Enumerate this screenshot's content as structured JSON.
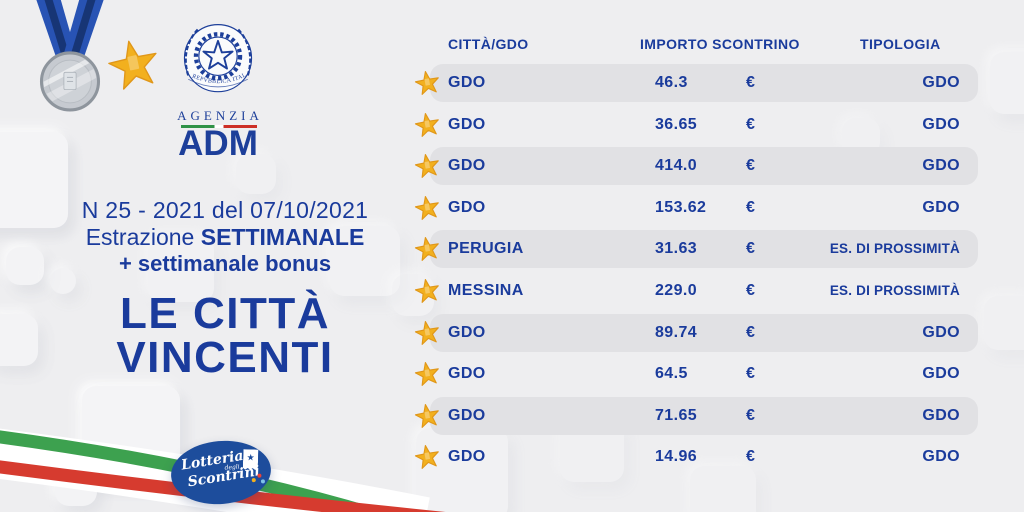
{
  "colors": {
    "accent_blue": "#1a3b9c",
    "row_highlight": "#e1e1e4",
    "star_gold": "#f2b01e",
    "star_gold_dark": "#e0971a",
    "tricolor_green": "#2f9247",
    "tricolor_red": "#cd2f26",
    "logo_ellipse_blue": "#1d4d9c",
    "medal_silver": "#c6cad0",
    "ribbon_blue": "#2853b4"
  },
  "icons": {
    "medal": "medal-icon",
    "star": "star-icon",
    "emblem": "italy-emblem-icon",
    "receipt": "receipt-icon"
  },
  "adm_logo": {
    "banner_text": "REPVBBLICA ITALIANA",
    "agenzia": "AGENZIA",
    "adm": "ADM"
  },
  "left_panel": {
    "line1": "N 25 - 2021 del 07/10/2021",
    "line2_regular": "Estrazione ",
    "line2_bold": "SETTIMANALE",
    "line3": "+ settimanale bonus",
    "title_line1": "LE CITTÀ",
    "title_line2": "VINCENTI"
  },
  "footer_logo": {
    "word1": "Lotteria",
    "word2": "degli",
    "word3": "Scontrini",
    "receipt_star": "★"
  },
  "table": {
    "columns": [
      "CITTÀ/GDO",
      "IMPORTO SCONTRINO",
      "TIPOLOGIA"
    ],
    "currency": "€",
    "rows": [
      {
        "citta": "GDO",
        "importo": "46.3",
        "tipologia": "GDO",
        "highlight": true
      },
      {
        "citta": "GDO",
        "importo": "36.65",
        "tipologia": "GDO",
        "highlight": false
      },
      {
        "citta": "GDO",
        "importo": "414.0",
        "tipologia": "GDO",
        "highlight": true
      },
      {
        "citta": "GDO",
        "importo": "153.62",
        "tipologia": "GDO",
        "highlight": false
      },
      {
        "citta": "PERUGIA",
        "importo": "31.63",
        "tipologia": "ES. DI PROSSIMITÀ",
        "highlight": true
      },
      {
        "citta": "MESSINA",
        "importo": "229.0",
        "tipologia": "ES. DI PROSSIMITÀ",
        "highlight": false
      },
      {
        "citta": "GDO",
        "importo": "89.74",
        "tipologia": "GDO",
        "highlight": true
      },
      {
        "citta": "GDO",
        "importo": "64.5",
        "tipologia": "GDO",
        "highlight": false
      },
      {
        "citta": "GDO",
        "importo": "71.65",
        "tipologia": "GDO",
        "highlight": true
      },
      {
        "citta": "GDO",
        "importo": "14.96",
        "tipologia": "GDO",
        "highlight": false
      }
    ]
  }
}
